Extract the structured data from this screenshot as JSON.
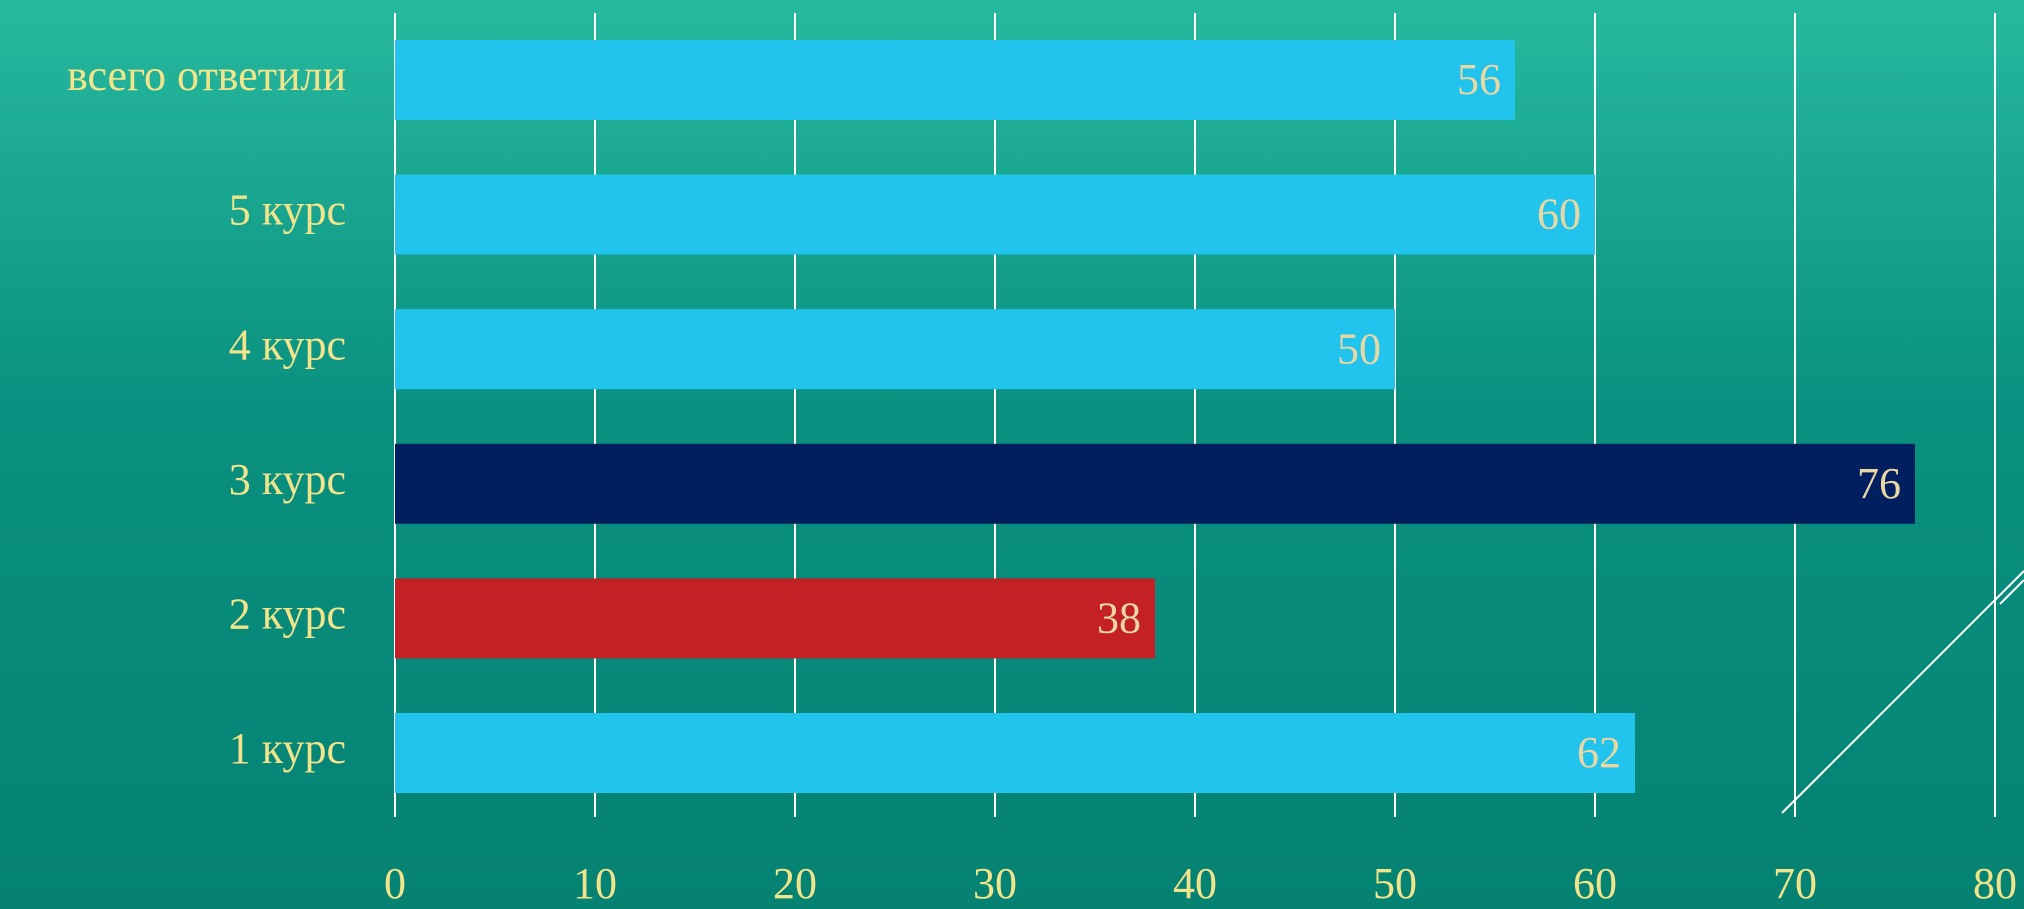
{
  "chart_data": {
    "type": "barh",
    "categories": [
      "всего ответили",
      "5 курс",
      "4 курс",
      "3 курс",
      "2 курс",
      "1 курс"
    ],
    "values": [
      56,
      60,
      50,
      76,
      38,
      62
    ],
    "colors": [
      "#22c4ee",
      "#22c4ee",
      "#22c4ee",
      "#001f5f",
      "#c32126",
      "#22c4ee"
    ],
    "xlim": [
      0,
      80
    ],
    "xticks": [
      0,
      10,
      20,
      30,
      40,
      50,
      60,
      70,
      80
    ],
    "grid": true
  }
}
